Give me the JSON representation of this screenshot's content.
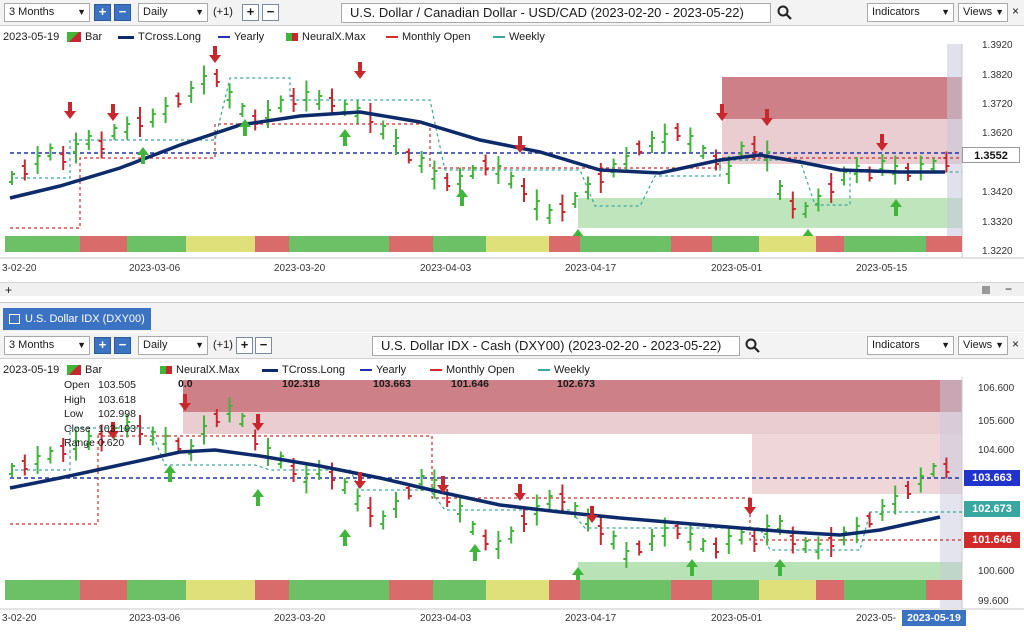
{
  "top": {
    "toolbar": {
      "range": "3 Months",
      "interval": "Daily",
      "offset": "(+1)",
      "title": "U.S. Dollar / Canadian Dollar - USD/CAD (2023-02-20 - 2023-05-22)",
      "indicators": "Indicators",
      "views": "Views"
    },
    "legend": {
      "date": "2023-05-19",
      "bar": "Bar",
      "tcross": "TCross.Long",
      "yearly": "Yearly",
      "neuralx": "NeuralX.Max",
      "monthly": "Monthly Open",
      "weekly": "Weekly"
    },
    "yaxis": [
      "1.3920",
      "1.3820",
      "1.3720",
      "1.3620",
      "1.3420",
      "1.3320",
      "1.3220"
    ],
    "price_tag": "1.3552",
    "xaxis": [
      "3-02-20",
      "2023-03-06",
      "2023-03-20",
      "2023-04-03",
      "2023-04-17",
      "2023-05-01",
      "2023-05-15"
    ]
  },
  "tab": {
    "label": "U.S. Dollar IDX (DXY00)"
  },
  "bottom": {
    "toolbar": {
      "range": "3 Months",
      "interval": "Daily",
      "offset": "(+1)",
      "title": "U.S. Dollar IDX - Cash (DXY00) (2023-02-20 - 2023-05-22)",
      "indicators": "Indicators",
      "views": "Views"
    },
    "legend": {
      "date": "2023-05-19",
      "bar": "Bar",
      "neuralx": "NeuralX.Max",
      "tcross": "TCross.Long",
      "yearly": "Yearly",
      "monthly": "Monthly Open",
      "weekly": "Weekly"
    },
    "legend_values": {
      "neuralx": "0.0",
      "tcross": "102.318",
      "yearly": "103.663",
      "monthly": "101.646",
      "weekly": "102.673"
    },
    "ohlc": {
      "open_label": "Open",
      "open": "103.505",
      "high_label": "High",
      "high": "103.618",
      "low_label": "Low",
      "low": "102.998",
      "close_label": "Close",
      "close": "103.193",
      "range_label": "Range",
      "range": "0.620"
    },
    "yaxis": [
      "106.600",
      "105.600",
      "104.600",
      "100.600",
      "99.600"
    ],
    "tags": {
      "yearly": "103.663",
      "weekly": "102.673",
      "monthly": "101.646"
    },
    "xaxis": [
      "3-02-20",
      "2023-03-06",
      "2023-03-20",
      "2023-04-03",
      "2023-04-17",
      "2023-05-01",
      "2023-05-"
    ],
    "cursor_date": "2023-05-19"
  },
  "colors": {
    "up": "#3fb53a",
    "down": "#c8282d",
    "tcross": "#0d2a6b",
    "yearly": "#2233aa",
    "monthly": "#d02a2a",
    "weekly": "#3aa6a0",
    "accent": "#3b73c2"
  }
}
